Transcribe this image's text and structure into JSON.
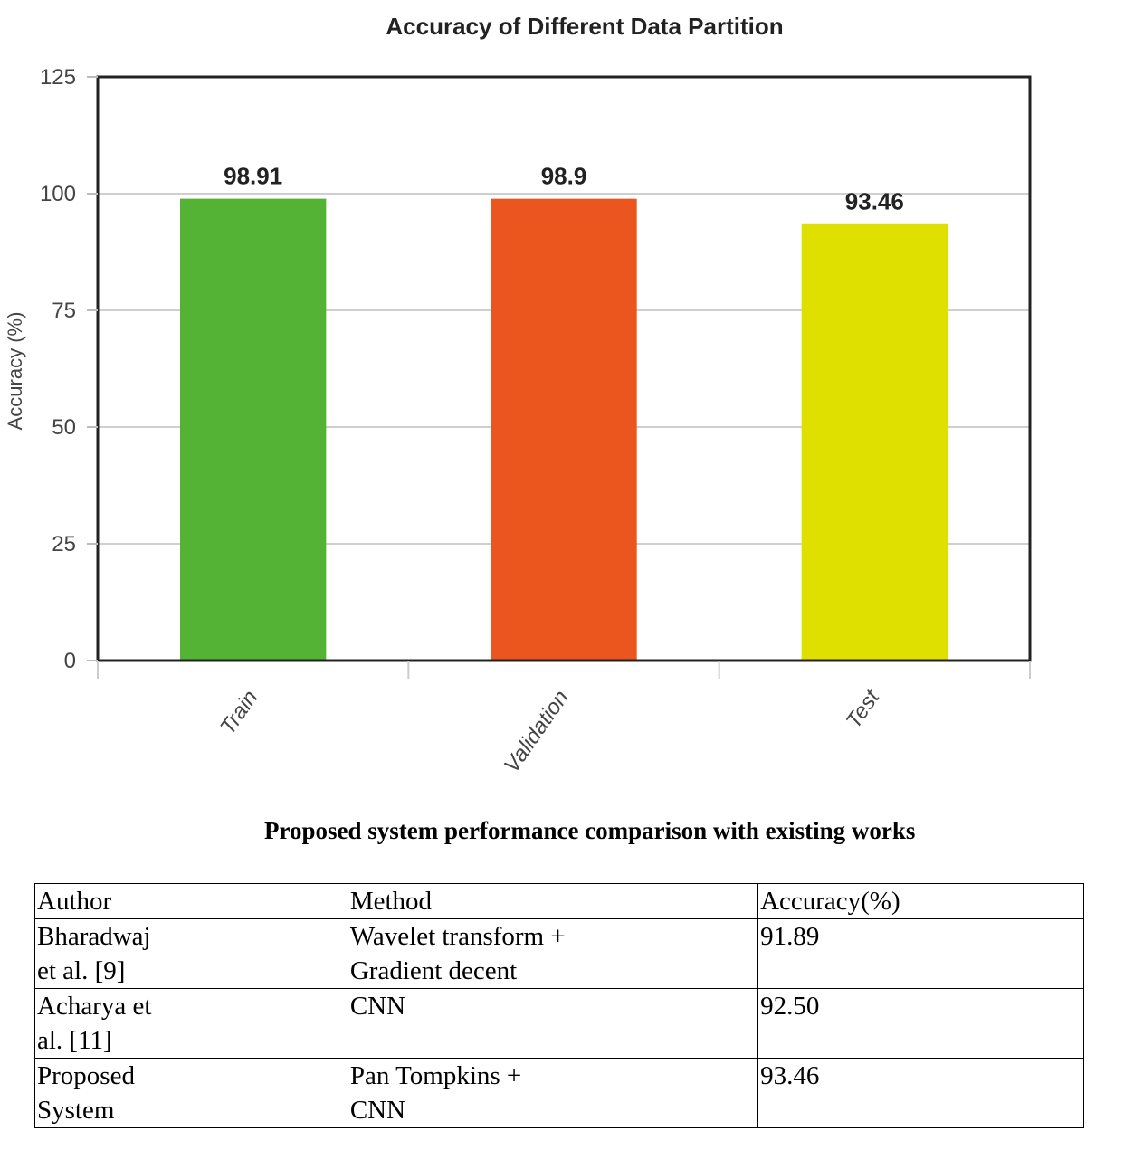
{
  "chart_data": {
    "type": "bar",
    "title": "Accuracy of Different Data Partition",
    "xlabel": "",
    "ylabel": "Accuracy (%)",
    "categories": [
      "Train",
      "Validation",
      "Test"
    ],
    "values": [
      98.91,
      98.9,
      93.46
    ],
    "value_labels": [
      "98.91",
      "98.9",
      "93.46"
    ],
    "colors": [
      "#54b334",
      "#ea561e",
      "#dfe000"
    ],
    "ylim": [
      0,
      125
    ],
    "yticks": [
      0,
      25,
      50,
      75,
      100,
      125
    ],
    "grid": true,
    "legend": "none"
  },
  "table": {
    "caption": "Proposed system performance comparison with existing works",
    "headers": [
      "Author",
      "Method",
      "Accuracy(%)"
    ],
    "rows": [
      {
        "author": [
          "Bharadwaj",
          "et al. [9]"
        ],
        "method": [
          "Wavelet transform +",
          "Gradient decent"
        ],
        "accuracy": "91.89"
      },
      {
        "author": [
          "Acharya et",
          "al. [11]"
        ],
        "method": [
          "CNN",
          ""
        ],
        "accuracy": "92.50"
      },
      {
        "author": [
          "Proposed",
          "System"
        ],
        "method": [
          "Pan Tompkins +",
          "CNN"
        ],
        "accuracy": "93.46"
      }
    ]
  }
}
